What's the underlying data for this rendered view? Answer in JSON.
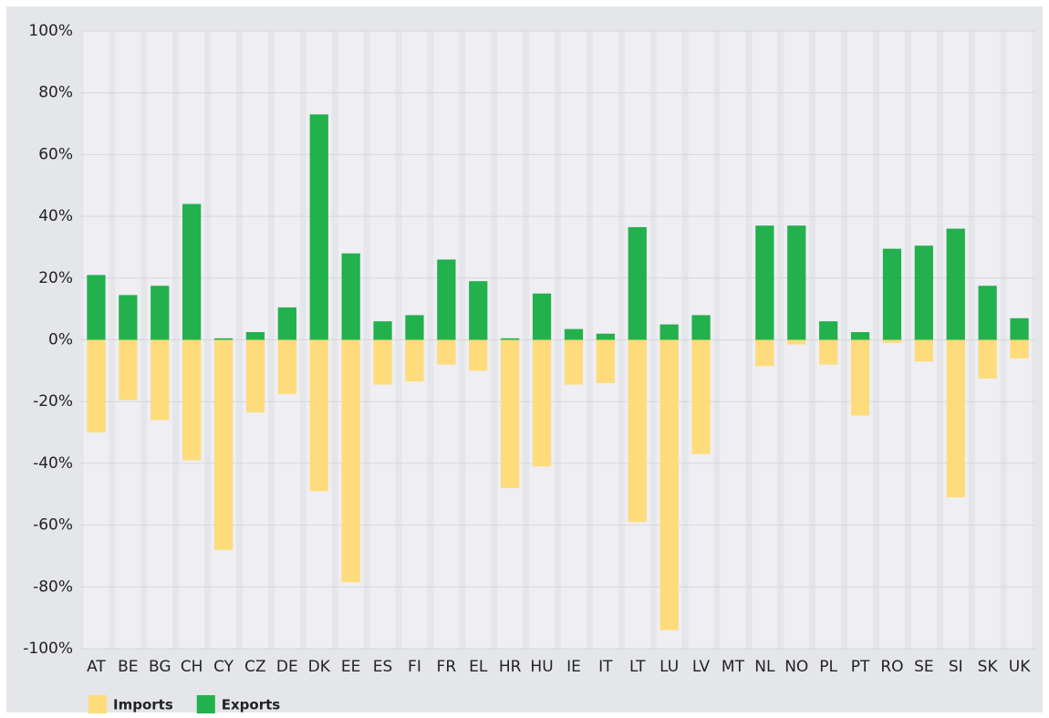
{
  "chart_data": {
    "type": "bar",
    "categories": [
      "AT",
      "BE",
      "BG",
      "CH",
      "CY",
      "CZ",
      "DE",
      "DK",
      "EE",
      "ES",
      "FI",
      "FR",
      "EL",
      "HR",
      "HU",
      "IE",
      "IT",
      "LT",
      "LU",
      "LV",
      "MT",
      "NL",
      "NO",
      "PL",
      "PT",
      "RO",
      "SE",
      "SI",
      "SK",
      "UK"
    ],
    "series": [
      {
        "name": "Imports",
        "color": "#fedc7b",
        "values": [
          -30,
          -19.5,
          -26,
          -39,
          -68,
          -23.5,
          -17.5,
          -49,
          -78.5,
          -14.5,
          -13.5,
          -8,
          -10,
          -48,
          -41,
          -14.5,
          -14,
          -59,
          -94,
          -37,
          0,
          -8.5,
          -1.5,
          -8,
          -24.5,
          -1,
          -7,
          -51,
          -12.5,
          -6
        ]
      },
      {
        "name": "Exports",
        "color": "#22b14c",
        "values": [
          21,
          14.5,
          17.5,
          44,
          0.5,
          2.5,
          10.5,
          73,
          28,
          6,
          8,
          26,
          19,
          0.5,
          15,
          3.5,
          2,
          36.5,
          5,
          8,
          0,
          37,
          37,
          6,
          2.5,
          29.5,
          30.5,
          36,
          17.5,
          7
        ]
      }
    ],
    "ylim": [
      -100,
      100
    ],
    "yticks": [
      {
        "value": -100,
        "label": "-100%"
      },
      {
        "value": -80,
        "label": "-80%"
      },
      {
        "value": -60,
        "label": "-60%"
      },
      {
        "value": -40,
        "label": "-40%"
      },
      {
        "value": -20,
        "label": "-20%"
      },
      {
        "value": 0,
        "label": "0%"
      },
      {
        "value": 20,
        "label": "20%"
      },
      {
        "value": 40,
        "label": "40%"
      },
      {
        "value": 60,
        "label": "60%"
      },
      {
        "value": 80,
        "label": "80%"
      },
      {
        "value": 100,
        "label": "100%"
      }
    ],
    "grid": true,
    "legend": "bottom-left"
  }
}
